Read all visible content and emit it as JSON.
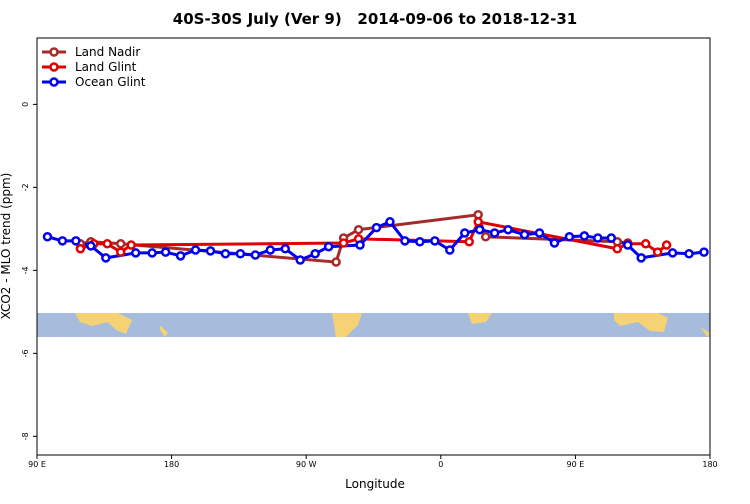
{
  "chart_data": {
    "type": "line",
    "title": "40S-30S July (Ver 9)   2014-09-06 to 2018-12-31",
    "x_label": "Longitude",
    "y_label": "XCO2 - MLO trend (ppm)",
    "xlim": [
      90,
      540
    ],
    "xticks": [
      {
        "value": 90,
        "label": "90 E"
      },
      {
        "value": 180,
        "label": "180"
      },
      {
        "value": 270,
        "label": "90 W"
      },
      {
        "value": 360,
        "label": "0"
      },
      {
        "value": 450,
        "label": "90 E"
      },
      {
        "value": 540,
        "label": "180"
      }
    ],
    "ylim": [
      -8.45,
      1.6
    ],
    "yticks": [
      0,
      -2,
      -4,
      -6,
      -8
    ],
    "legend": "top-left",
    "series": [
      {
        "name": "Land Nadir",
        "color": "#a52a2a",
        "x": [
          119,
          126,
          146,
          290,
          295,
          305,
          385,
          390,
          478,
          485
        ],
        "values": [
          -3.36,
          -3.31,
          -3.36,
          -3.8,
          -3.22,
          -3.02,
          -2.66,
          -3.19,
          -3.31,
          -3.34
        ]
      },
      {
        "name": "Land Glint",
        "color": "#e00000",
        "x": [
          119,
          128,
          137,
          146,
          153,
          295,
          305,
          379,
          385,
          478,
          485,
          497,
          505,
          511
        ],
        "values": [
          -3.48,
          -3.36,
          -3.36,
          -3.56,
          -3.39,
          -3.34,
          -3.24,
          -3.31,
          -2.83,
          -3.48,
          -3.36,
          -3.36,
          -3.56,
          -3.39
        ]
      },
      {
        "name": "Ocean Glint",
        "color": "#0000ee",
        "x": [
          97,
          107,
          116,
          126,
          136,
          156,
          167,
          176,
          186,
          196,
          206,
          216,
          226,
          236,
          246,
          256,
          266,
          276,
          285,
          306,
          317,
          326,
          336,
          346,
          356,
          366,
          376,
          386,
          396,
          405,
          416,
          426,
          436,
          446,
          456,
          465,
          474,
          485,
          494,
          515,
          526,
          536
        ],
        "values": [
          -3.19,
          -3.29,
          -3.29,
          -3.41,
          -3.7,
          -3.58,
          -3.58,
          -3.56,
          -3.65,
          -3.51,
          -3.53,
          -3.6,
          -3.6,
          -3.63,
          -3.51,
          -3.48,
          -3.75,
          -3.6,
          -3.43,
          -3.39,
          -2.97,
          -2.83,
          -3.29,
          -3.31,
          -3.29,
          -3.51,
          -3.1,
          -3.02,
          -3.1,
          -3.02,
          -3.14,
          -3.1,
          -3.34,
          -3.19,
          -3.17,
          -3.22,
          -3.22,
          -3.39,
          -3.7,
          -3.58,
          -3.6,
          -3.56
        ]
      }
    ]
  }
}
